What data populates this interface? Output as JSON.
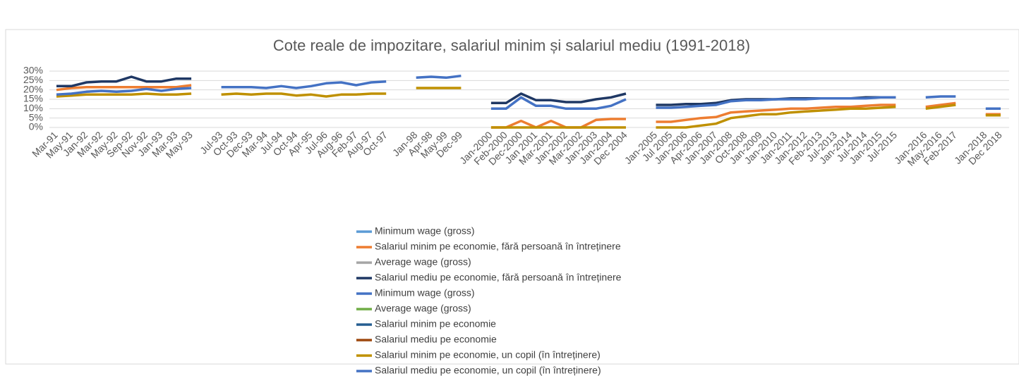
{
  "chart_data": {
    "type": "line",
    "title": "Cote reale de impozitare, salariul minim și salariul mediu (1991-2018)",
    "categories": [
      "Mar-91",
      "May-91",
      "Jan-92",
      "Mar-92",
      "May-92",
      "Sep-92",
      "Nov-92",
      "Jan-93",
      "Mar-93",
      "May-93",
      null,
      "Jul-93",
      "Oct-93",
      "Dec-93",
      "Mar-94",
      "Jul-94",
      "Oct-94",
      "Apr-95",
      "Jul-96",
      "Aug-96",
      "Feb-97",
      "Aug-97",
      "Oct-97",
      null,
      "Jan-98",
      "Apr-98",
      "May-99",
      "Dec-99",
      null,
      "Jan-2000",
      "Feb-2000",
      "Dec-2000",
      "Jan 2001",
      "Mar-2001",
      "Jan-2002",
      "Mar-2002",
      "Jan-2003",
      "Jan-2004",
      "Dec 2004",
      null,
      "Jan-2005",
      "Jul 2005",
      "Jan-2006",
      "Apr-2006",
      "Jan-2007",
      "Jan-2008",
      "Oct-2008",
      "Jan-2009",
      "Jan-2010",
      "Jan-2011",
      "Jan-2012",
      "Feb-2013",
      "Jul-2013",
      "Jan-2014",
      "Jul-2014",
      "Jan-2015",
      "Jul-2015",
      null,
      "Jan-2016",
      "May-2016",
      "Feb-2017",
      null,
      "Jan-2018",
      "Dec 2018"
    ],
    "series": [
      {
        "name": "Minimum wage (gross)",
        "color": "#5b9bd5",
        "values": [
          null,
          null,
          null,
          null,
          null,
          null,
          null,
          null,
          null,
          null,
          null,
          null,
          null,
          null,
          null,
          null,
          null,
          null,
          null,
          null,
          null,
          null,
          null,
          null,
          null,
          null,
          null,
          null,
          null,
          null,
          null,
          null,
          null,
          null,
          null,
          null,
          null,
          null,
          null,
          null,
          null,
          null,
          null,
          null,
          null,
          null,
          null,
          null,
          null,
          null,
          null,
          null,
          null,
          null,
          null,
          null,
          null,
          null,
          null,
          null,
          null,
          null,
          null,
          null
        ]
      },
      {
        "name": "Salariul minim pe economie, fără  persoană în întreținere",
        "color": "#ed7d31",
        "values": [
          20,
          21,
          21.5,
          21.5,
          21.5,
          21.5,
          21.5,
          21.5,
          21.5,
          22.5,
          null,
          null,
          null,
          null,
          null,
          null,
          null,
          null,
          null,
          null,
          null,
          null,
          null,
          null,
          null,
          null,
          null,
          null,
          null,
          0,
          0,
          3.5,
          0,
          3.5,
          0,
          0,
          4,
          4.5,
          4.5,
          null,
          3,
          3,
          4,
          5,
          5.5,
          8,
          8.5,
          9,
          9.5,
          10,
          10,
          10.5,
          11,
          11,
          11.5,
          12,
          12,
          null,
          11,
          12,
          13,
          null,
          7,
          7
        ]
      },
      {
        "name": "Average wage (gross)",
        "color": "#a5a5a5",
        "values": [
          null,
          null,
          null,
          null,
          null,
          null,
          null,
          null,
          null,
          null,
          null,
          null,
          null,
          null,
          null,
          null,
          null,
          null,
          null,
          null,
          null,
          null,
          null,
          null,
          null,
          null,
          null,
          null,
          null,
          null,
          null,
          null,
          null,
          null,
          null,
          null,
          null,
          null,
          null,
          null,
          null,
          null,
          null,
          null,
          null,
          null,
          null,
          null,
          null,
          null,
          null,
          null,
          null,
          null,
          null,
          null,
          null,
          null,
          null,
          null,
          null,
          null,
          null,
          null
        ]
      },
      {
        "name": "Salariul mediu pe economie, fără persoană în întreținere",
        "color": "#1f3864",
        "values": [
          22,
          22,
          24,
          24.5,
          24.5,
          27,
          24.5,
          24.5,
          26,
          26,
          null,
          null,
          null,
          null,
          null,
          null,
          null,
          null,
          null,
          null,
          null,
          null,
          null,
          null,
          null,
          null,
          null,
          null,
          null,
          13,
          13,
          18,
          14.5,
          14.5,
          13.5,
          13.5,
          15,
          16,
          18,
          null,
          12,
          12,
          12.5,
          12.5,
          13,
          14.5,
          15,
          15,
          15,
          15.5,
          15.5,
          15.5,
          15.5,
          15.5,
          16,
          16,
          16,
          null,
          null,
          null,
          null,
          null,
          null,
          null
        ]
      },
      {
        "name": "Minimum wage (gross)",
        "color": "#4472c4",
        "values": [
          null,
          null,
          null,
          null,
          null,
          null,
          null,
          null,
          null,
          null,
          null,
          null,
          null,
          null,
          null,
          null,
          null,
          null,
          null,
          null,
          null,
          null,
          null,
          null,
          null,
          null,
          null,
          null,
          null,
          null,
          null,
          null,
          null,
          null,
          null,
          null,
          null,
          null,
          null,
          null,
          null,
          null,
          null,
          null,
          null,
          null,
          null,
          null,
          null,
          null,
          null,
          null,
          null,
          null,
          null,
          null,
          null,
          null,
          null,
          null,
          null,
          null,
          null,
          null
        ]
      },
      {
        "name": "Average wage (gross)",
        "color": "#70ad47",
        "values": [
          null,
          null,
          null,
          null,
          null,
          null,
          null,
          null,
          null,
          null,
          null,
          null,
          null,
          null,
          null,
          null,
          null,
          null,
          null,
          null,
          null,
          null,
          null,
          null,
          null,
          null,
          null,
          null,
          null,
          null,
          null,
          null,
          null,
          null,
          null,
          null,
          null,
          null,
          null,
          null,
          null,
          null,
          null,
          null,
          null,
          null,
          null,
          null,
          null,
          null,
          null,
          null,
          null,
          null,
          null,
          null,
          null,
          null,
          null,
          null,
          null,
          null,
          null,
          null
        ]
      },
      {
        "name": "Salariul minim pe economie",
        "color": "#255e91",
        "values": [
          null,
          null,
          null,
          null,
          null,
          null,
          null,
          null,
          null,
          null,
          null,
          null,
          null,
          null,
          null,
          null,
          null,
          null,
          null,
          null,
          null,
          null,
          null,
          null,
          null,
          null,
          null,
          null,
          null,
          null,
          null,
          null,
          null,
          null,
          null,
          null,
          null,
          null,
          null,
          null,
          null,
          null,
          null,
          null,
          null,
          null,
          null,
          null,
          null,
          null,
          null,
          null,
          null,
          null,
          null,
          null,
          null,
          null,
          null,
          null,
          null,
          null,
          null,
          null
        ]
      },
      {
        "name": "Salariul mediu pe economie",
        "color": "#9e480e",
        "values": [
          null,
          null,
          null,
          null,
          null,
          null,
          null,
          null,
          null,
          null,
          null,
          null,
          null,
          null,
          null,
          null,
          null,
          null,
          null,
          null,
          null,
          null,
          null,
          null,
          null,
          null,
          null,
          null,
          null,
          null,
          null,
          null,
          null,
          null,
          null,
          null,
          null,
          null,
          null,
          null,
          null,
          null,
          null,
          null,
          null,
          null,
          null,
          null,
          null,
          null,
          null,
          null,
          null,
          null,
          null,
          null,
          null,
          null,
          null,
          null,
          null,
          null,
          null,
          null
        ]
      },
      {
        "name": "Salariul minim pe economie, un copil (în întreținere)",
        "color": "#bf9000",
        "values": [
          16.5,
          17,
          17.5,
          17.5,
          17.5,
          17.5,
          18,
          17.5,
          17.5,
          18,
          null,
          17.5,
          18,
          17.5,
          18,
          18,
          17,
          17.5,
          16.5,
          17.5,
          17.5,
          18,
          18,
          null,
          21,
          21,
          21,
          21,
          null,
          0,
          0,
          0,
          0,
          0,
          0,
          0,
          0,
          0,
          0,
          null,
          0,
          0,
          0,
          1,
          2,
          5,
          6,
          7,
          7,
          8,
          8.5,
          9,
          9.5,
          10,
          10,
          10.5,
          11,
          null,
          10,
          11,
          12,
          null,
          6.5,
          6.5
        ]
      },
      {
        "name": "Salariul mediu pe economie, un copil (în întreținere)",
        "color": "#4472c4",
        "values": [
          17.5,
          18,
          19,
          19.5,
          19,
          19.5,
          20.5,
          19.5,
          20.5,
          21,
          null,
          21.5,
          21.5,
          21.5,
          21,
          22,
          21,
          22,
          23.5,
          24,
          22.5,
          24,
          24.5,
          null,
          26.5,
          27,
          26.5,
          27.5,
          null,
          10,
          10,
          16,
          11.5,
          11.5,
          10,
          10,
          10,
          11.5,
          15,
          null,
          10.5,
          10.5,
          11,
          11.5,
          12,
          14,
          14.5,
          14.5,
          15,
          15,
          15,
          15.5,
          15.5,
          15.5,
          15.5,
          16,
          16,
          null,
          16,
          16.5,
          16.5,
          null,
          10,
          10
        ]
      }
    ],
    "ylim": [
      0,
      30
    ],
    "yticks": [
      {
        "value": 0,
        "label": "0%"
      },
      {
        "value": 5,
        "label": "5%"
      },
      {
        "value": 10,
        "label": "10%"
      },
      {
        "value": 15,
        "label": "15%"
      },
      {
        "value": 20,
        "label": "20%"
      },
      {
        "value": 25,
        "label": "25%"
      },
      {
        "value": 30,
        "label": "30%"
      }
    ],
    "grid": true,
    "legend": "bottom"
  }
}
